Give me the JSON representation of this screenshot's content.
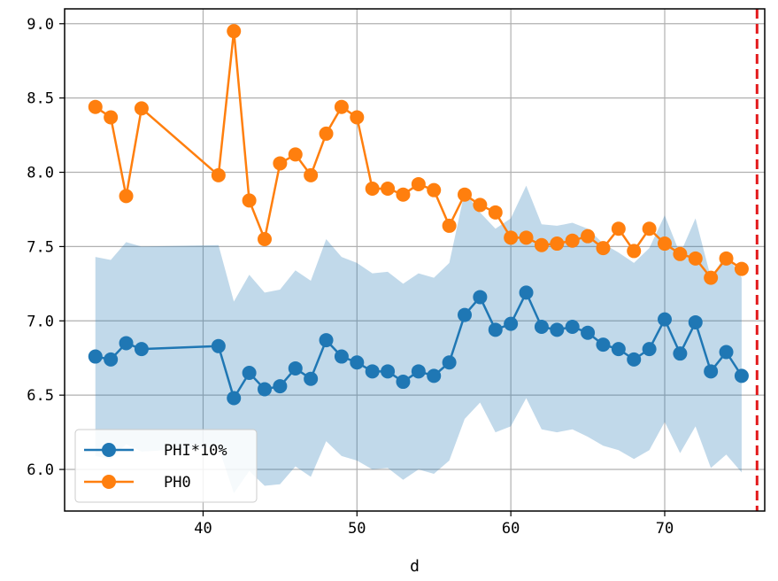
{
  "chart_data": {
    "type": "line",
    "xlabel": "d",
    "ylabel": "",
    "title": "",
    "xlim": [
      31,
      76.5
    ],
    "ylim": [
      5.72,
      9.1
    ],
    "xticks": [
      "40",
      "50",
      "60",
      "70"
    ],
    "yticks": [
      "6.0",
      "6.5",
      "7.0",
      "7.5",
      "8.0",
      "8.5",
      "9.0"
    ],
    "grid": true,
    "legend_position": "lower-left",
    "vline": {
      "x": 76,
      "color": "#e31a1c",
      "style": "dashed"
    },
    "band": {
      "color": "#1f77b4",
      "opacity": 0.28,
      "x": [
        33,
        34,
        35,
        36,
        41,
        42,
        43,
        44,
        45,
        46,
        47,
        48,
        49,
        50,
        51,
        52,
        53,
        54,
        55,
        56,
        57,
        58,
        59,
        60,
        61,
        62,
        63,
        64,
        65,
        66,
        67,
        68,
        69,
        70,
        71,
        72,
        73,
        74,
        75
      ],
      "upper": [
        7.43,
        7.41,
        7.53,
        7.5,
        7.51,
        7.13,
        7.31,
        7.19,
        7.21,
        7.34,
        7.27,
        7.55,
        7.43,
        7.39,
        7.32,
        7.33,
        7.25,
        7.32,
        7.29,
        7.39,
        7.87,
        7.73,
        7.62,
        7.69,
        7.91,
        7.65,
        7.64,
        7.66,
        7.62,
        7.52,
        7.46,
        7.39,
        7.49,
        7.71,
        7.45,
        7.69,
        7.29,
        7.45,
        7.29
      ],
      "lower": [
        6.09,
        6.07,
        6.17,
        6.12,
        6.15,
        5.84,
        5.99,
        5.89,
        5.9,
        6.02,
        5.95,
        6.19,
        6.09,
        6.06,
        6.0,
        6.01,
        5.93,
        6.0,
        5.97,
        6.06,
        6.34,
        6.45,
        6.25,
        6.29,
        6.48,
        6.27,
        6.25,
        6.27,
        6.22,
        6.16,
        6.13,
        6.07,
        6.13,
        6.32,
        6.11,
        6.29,
        6.01,
        6.1,
        5.98
      ]
    },
    "series": [
      {
        "name": "PHI*10%",
        "color": "#1f77b4",
        "x": [
          33,
          34,
          35,
          36,
          41,
          42,
          43,
          44,
          45,
          46,
          47,
          48,
          49,
          50,
          51,
          52,
          53,
          54,
          55,
          56,
          57,
          58,
          59,
          60,
          61,
          62,
          63,
          64,
          65,
          66,
          67,
          68,
          69,
          70,
          71,
          72,
          73,
          74,
          75
        ],
        "y": [
          6.76,
          6.74,
          6.85,
          6.81,
          6.83,
          6.48,
          6.65,
          6.54,
          6.56,
          6.68,
          6.61,
          6.87,
          6.76,
          6.72,
          6.66,
          6.66,
          6.59,
          6.66,
          6.63,
          6.72,
          7.04,
          7.16,
          6.94,
          6.98,
          7.19,
          6.96,
          6.94,
          6.96,
          6.92,
          6.84,
          6.81,
          6.74,
          6.81,
          7.01,
          6.78,
          6.99,
          6.66,
          6.79,
          6.63
        ]
      },
      {
        "name": "PH0",
        "color": "#ff7f0e",
        "x": [
          33,
          34,
          35,
          36,
          41,
          42,
          43,
          44,
          45,
          46,
          47,
          48,
          49,
          50,
          51,
          52,
          53,
          54,
          55,
          56,
          57,
          58,
          59,
          60,
          61,
          62,
          63,
          64,
          65,
          66,
          67,
          68,
          69,
          70,
          71,
          72,
          73,
          74,
          75
        ],
        "y": [
          8.44,
          8.37,
          7.84,
          8.43,
          7.98,
          8.95,
          7.81,
          7.55,
          8.06,
          8.12,
          7.98,
          8.26,
          8.44,
          8.37,
          7.89,
          7.89,
          7.85,
          7.92,
          7.88,
          7.64,
          7.85,
          7.78,
          7.73,
          7.56,
          7.56,
          7.51,
          7.52,
          7.54,
          7.57,
          7.49,
          7.62,
          7.47,
          7.62,
          7.52,
          7.45,
          7.42,
          7.29,
          7.42,
          7.35
        ]
      }
    ]
  }
}
